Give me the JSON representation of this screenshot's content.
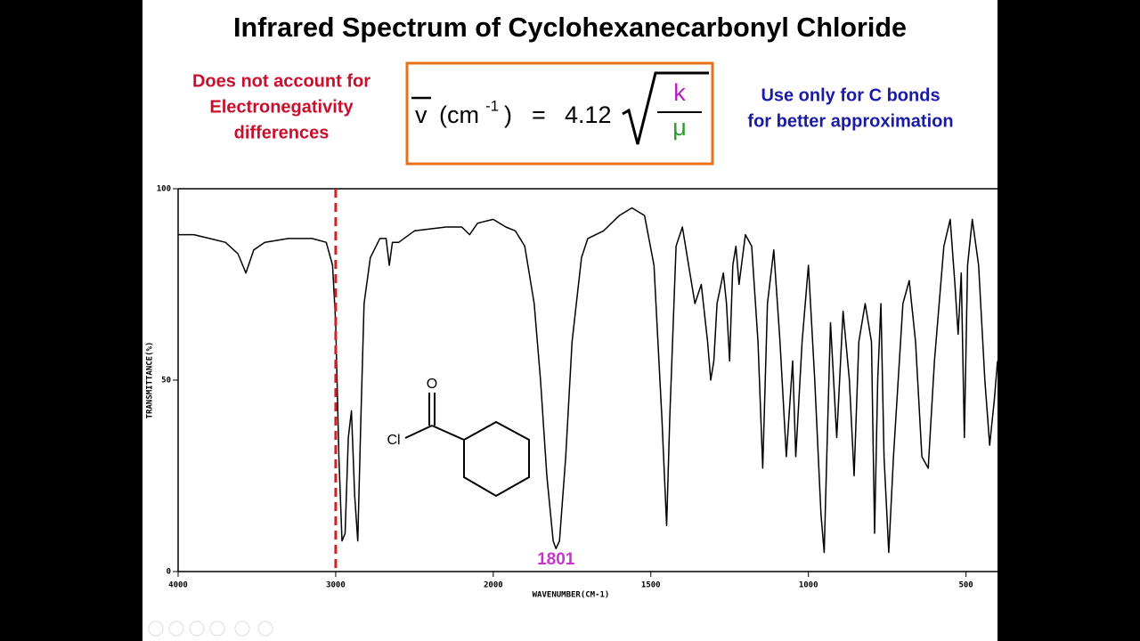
{
  "chart_data": {
    "type": "line",
    "title": "Infrared Spectrum of Cyclohexanecarbonyl Chloride",
    "x_label": "WAVENUMBER(CM-1)",
    "y_label": "TRANSMITTANCE(%)",
    "xlim": [
      4000,
      400
    ],
    "xscale_break": 2000,
    "xticks": [
      4000,
      3000,
      2000,
      1500,
      1000,
      500
    ],
    "ylim": [
      0,
      100
    ],
    "yticks": [
      0,
      50,
      100
    ],
    "reference_line": {
      "x": 3000,
      "color": "#d81e1e"
    },
    "annotation": {
      "x": 1801,
      "color": "#cc33cc"
    },
    "series": [
      {
        "name": "Cyclohexanecarbonyl Chloride",
        "color": "#000000",
        "x": [
          4000,
          3900,
          3800,
          3700,
          3620,
          3570,
          3520,
          3450,
          3300,
          3150,
          3060,
          3020,
          3000,
          2980,
          2960,
          2940,
          2920,
          2900,
          2880,
          2860,
          2840,
          2820,
          2780,
          2720,
          2680,
          2660,
          2640,
          2600,
          2500,
          2300,
          2200,
          2150,
          2100,
          2000,
          1960,
          1930,
          1900,
          1870,
          1850,
          1830,
          1810,
          1801,
          1790,
          1770,
          1750,
          1720,
          1700,
          1650,
          1600,
          1560,
          1520,
          1490,
          1465,
          1450,
          1440,
          1420,
          1400,
          1380,
          1360,
          1340,
          1320,
          1310,
          1300,
          1290,
          1270,
          1260,
          1250,
          1240,
          1230,
          1220,
          1200,
          1180,
          1160,
          1145,
          1130,
          1110,
          1090,
          1070,
          1050,
          1040,
          1020,
          1000,
          980,
          960,
          950,
          940,
          930,
          910,
          890,
          870,
          855,
          840,
          820,
          800,
          790,
          780,
          770,
          760,
          745,
          730,
          700,
          680,
          660,
          640,
          620,
          600,
          570,
          550,
          535,
          525,
          515,
          505,
          495,
          480,
          460,
          440,
          425,
          410,
          400
        ],
        "values": [
          88,
          88,
          87,
          86,
          83,
          78,
          84,
          86,
          87,
          87,
          86,
          80,
          65,
          30,
          8,
          10,
          35,
          42,
          20,
          8,
          40,
          70,
          82,
          87,
          87,
          80,
          86,
          86,
          89,
          90,
          90,
          88,
          91,
          92,
          90,
          89,
          85,
          70,
          50,
          25,
          8,
          6,
          8,
          30,
          60,
          82,
          87,
          89,
          93,
          95,
          93,
          80,
          40,
          12,
          40,
          85,
          90,
          80,
          70,
          75,
          60,
          50,
          55,
          70,
          78,
          70,
          55,
          80,
          85,
          75,
          88,
          85,
          60,
          27,
          70,
          84,
          60,
          30,
          55,
          30,
          60,
          80,
          50,
          15,
          5,
          35,
          65,
          35,
          68,
          50,
          25,
          60,
          70,
          60,
          10,
          50,
          70,
          30,
          5,
          30,
          70,
          76,
          60,
          30,
          27,
          55,
          85,
          92,
          75,
          62,
          78,
          35,
          80,
          92,
          80,
          50,
          33,
          45,
          55
        ]
      }
    ]
  },
  "formula": {
    "lhs": "v",
    "unit": "(cm",
    "unit_exp": "-1",
    "unit_close": ")",
    "equals": "=",
    "coefficient": "4.12",
    "numerator": "k",
    "denominator": "μ"
  },
  "left_note": [
    "Does not account for",
    "Electronegativity",
    "differences"
  ],
  "right_note": [
    "Use only for C bonds",
    "for better approximation"
  ],
  "molecule": {
    "oxygen": "O",
    "chlorine": "Cl"
  }
}
